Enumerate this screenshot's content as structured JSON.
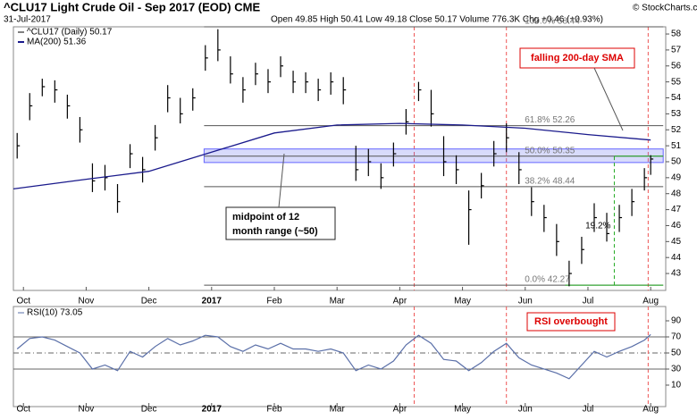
{
  "chart_data": [
    {
      "type": "ohlc",
      "title": "^CLU17 Light Crude Oil - Sep 2017 (EOD) CME",
      "subtitle": "31-Jul-2017",
      "quote": "Open 49.85 High 50.41 Low 49.18 Close 50.17 Volume 776.3K Chg +0.46 (+0.93%)",
      "credit": "© StockCharts.com",
      "xlim": [
        -0.16,
        10.24
      ],
      "ylim": [
        41.94,
        58.45
      ],
      "yticks": [
        43,
        44,
        45,
        46,
        47,
        48,
        49,
        50,
        51,
        52,
        53,
        54,
        55,
        56,
        57,
        58
      ],
      "xticks": [
        {
          "value": 0,
          "label": "Oct"
        },
        {
          "value": 1,
          "label": "Nov"
        },
        {
          "value": 2,
          "label": "Dec"
        },
        {
          "value": 3,
          "label": "2017"
        },
        {
          "value": 4,
          "label": "Feb"
        },
        {
          "value": 5,
          "label": "Mar"
        },
        {
          "value": 6,
          "label": "Apr"
        },
        {
          "value": 7,
          "label": "May"
        },
        {
          "value": 8,
          "label": "Jun"
        },
        {
          "value": 9,
          "label": "Jul"
        },
        {
          "value": 10,
          "label": "Aug"
        }
      ],
      "x": [
        -0.1,
        0.1,
        0.3,
        0.5,
        0.7,
        0.9,
        1.1,
        1.3,
        1.5,
        1.7,
        1.9,
        2.1,
        2.3,
        2.5,
        2.7,
        2.9,
        3.1,
        3.3,
        3.5,
        3.7,
        3.9,
        4.1,
        4.3,
        4.5,
        4.7,
        4.9,
        5.1,
        5.3,
        5.5,
        5.7,
        5.9,
        6.1,
        6.3,
        6.5,
        6.7,
        6.9,
        7.1,
        7.3,
        7.5,
        7.7,
        7.9,
        8.1,
        8.3,
        8.5,
        8.7,
        8.9,
        9.1,
        9.3,
        9.5,
        9.7,
        9.9,
        10.0
      ],
      "series": [
        {
          "name": "^CLU17 (Daily) 50.17",
          "color": "#000000",
          "high": [
            51.8,
            54.3,
            55.2,
            55.1,
            54.2,
            52.8,
            49.9,
            49.8,
            48.6,
            51.1,
            50.3,
            52.3,
            54.8,
            54,
            54.6,
            57.3,
            58.3,
            56.6,
            55.3,
            56.2,
            55.8,
            56.6,
            55.7,
            55.6,
            55.2,
            55.6,
            55.3,
            51,
            50.8,
            49.9,
            51.2,
            53.3,
            55,
            54.5,
            51.6,
            50.4,
            48.2,
            49.3,
            51.3,
            52.4,
            50.6,
            48.4,
            47.3,
            46.1,
            43.8,
            45.3,
            47.4,
            46.8,
            47.3,
            48.3,
            49.6,
            50.41
          ],
          "low": [
            50.2,
            52.6,
            54.1,
            53.7,
            52.7,
            51.2,
            48.1,
            48.2,
            46.8,
            49.6,
            48.7,
            50.7,
            53.1,
            52.4,
            53.2,
            55.7,
            56.3,
            54.9,
            53.7,
            54.8,
            54.3,
            55.3,
            54.3,
            54.3,
            53.8,
            54.2,
            53.6,
            48.8,
            49.1,
            48.3,
            49.7,
            51.7,
            53.8,
            52.2,
            49.1,
            48.6,
            44.8,
            47.7,
            49.7,
            50.6,
            48.6,
            46.6,
            45.6,
            44.1,
            42.2,
            43.6,
            45.6,
            45,
            45.6,
            46.6,
            48.2,
            49.18
          ],
          "close": [
            51,
            53.5,
            54.7,
            54.5,
            53.5,
            52,
            48.8,
            49,
            47.5,
            50.5,
            49.5,
            51.5,
            54,
            53,
            54,
            56.5,
            57,
            55.5,
            54.5,
            55.5,
            55,
            56,
            55,
            55,
            54.5,
            55,
            54.5,
            49.5,
            50,
            49,
            50.5,
            52.5,
            54.5,
            53,
            50,
            49.5,
            47,
            48.5,
            50.5,
            51.5,
            49.5,
            47.5,
            46.5,
            45,
            43,
            44.5,
            46.5,
            45.5,
            46.5,
            47.5,
            49,
            50.17
          ]
        },
        {
          "name": "MA(200) 51.36",
          "color": "#1a1a8c",
          "x": [
            -0.16,
            1,
            2,
            3,
            4,
            5,
            6,
            7,
            8,
            9,
            10
          ],
          "values": [
            48.3,
            48.9,
            49.4,
            50.6,
            51.8,
            52.3,
            52.4,
            52.3,
            52.1,
            51.7,
            51.36
          ]
        }
      ],
      "fib_x": [
        2.88,
        10.2
      ],
      "fib_levels": [
        {
          "value": 58.45,
          "label": "100.0% 58.44"
        },
        {
          "value": 52.26,
          "label": "61.8% 52.26"
        },
        {
          "value": 50.35,
          "label": "50.0% 50.35"
        },
        {
          "value": 48.44,
          "label": "38.2% 48.44"
        },
        {
          "value": 42.27,
          "label": "0.0% 42.27"
        }
      ],
      "band": [
        49.95,
        50.8
      ],
      "measure": {
        "x": 9.42,
        "from": 42.27,
        "to": 50.35,
        "label": "19.2%"
      },
      "event_lines": [
        6.23,
        7.7,
        9.96
      ],
      "annotations": [
        "falling 200-day SMA",
        "midpoint of 12",
        "month range (~50)"
      ]
    },
    {
      "type": "line",
      "xlim": [
        -0.16,
        10.24
      ],
      "ylim": [
        -16.7,
        107.8
      ],
      "yticks": [
        10,
        30,
        50,
        70,
        90
      ],
      "xticks": [
        {
          "value": 0,
          "label": "Oct"
        },
        {
          "value": 1,
          "label": "Nov"
        },
        {
          "value": 2,
          "label": "Dec"
        },
        {
          "value": 3,
          "label": "2017"
        },
        {
          "value": 4,
          "label": "Feb"
        },
        {
          "value": 5,
          "label": "Mar"
        },
        {
          "value": 6,
          "label": "Apr"
        },
        {
          "value": 7,
          "label": "May"
        },
        {
          "value": 8,
          "label": "Jun"
        },
        {
          "value": 9,
          "label": "Jul"
        },
        {
          "value": 10,
          "label": "Aug"
        }
      ],
      "x": [
        -0.1,
        0.1,
        0.3,
        0.5,
        0.7,
        0.9,
        1.1,
        1.3,
        1.5,
        1.7,
        1.9,
        2.1,
        2.3,
        2.5,
        2.7,
        2.9,
        3.1,
        3.3,
        3.5,
        3.7,
        3.9,
        4.1,
        4.3,
        4.5,
        4.7,
        4.9,
        5.1,
        5.3,
        5.5,
        5.7,
        5.9,
        6.1,
        6.3,
        6.5,
        6.7,
        6.9,
        7.1,
        7.3,
        7.5,
        7.7,
        7.9,
        8.1,
        8.3,
        8.5,
        8.7,
        8.9,
        9.1,
        9.3,
        9.5,
        9.7,
        9.9,
        10.0
      ],
      "series": [
        {
          "name": "RSI(10) 73.05",
          "color": "#5a6fa8",
          "values": [
            55,
            68,
            70,
            66,
            58,
            50,
            30,
            35,
            28,
            52,
            45,
            58,
            68,
            60,
            65,
            72,
            70,
            58,
            52,
            60,
            55,
            62,
            55,
            55,
            52,
            55,
            50,
            28,
            35,
            30,
            40,
            60,
            72,
            62,
            42,
            40,
            28,
            38,
            52,
            62,
            44,
            35,
            30,
            25,
            18,
            35,
            52,
            45,
            52,
            58,
            66,
            73.05
          ]
        }
      ],
      "levels": [
        70,
        50,
        30
      ],
      "event_lines": [
        6.23,
        7.7,
        9.96
      ],
      "annotations": [
        "RSI overbought"
      ]
    }
  ]
}
